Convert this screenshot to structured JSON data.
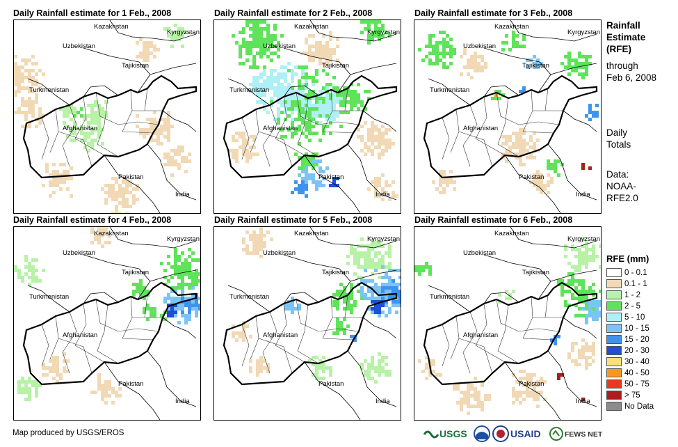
{
  "panels": [
    {
      "title": "Daily Rainfall estimate for 1 Feb., 2008",
      "country_labels": [
        "Kazakhstan",
        "Kyrgyzstan",
        "Uzbekistan",
        "Tajikistan",
        "Turkmenistan",
        "Afghanistan",
        "Pakistan",
        "India"
      ]
    },
    {
      "title": "Daily Rainfall estimate for 2 Feb., 2008",
      "country_labels": [
        "Kazakhstan",
        "Kyrgyzstan",
        "Uzbekistan",
        "Tajikistan",
        "Turkmenistan",
        "Afghanistan",
        "Pakistan",
        "India"
      ]
    },
    {
      "title": "Daily Rainfall estimate for 3 Feb., 2008",
      "country_labels": [
        "Kazakhstan",
        "Kyrgyzstan",
        "Uzbekistan",
        "Tajikistan",
        "Turkmenistan",
        "Afghanistan",
        "Pakistan",
        "India"
      ]
    },
    {
      "title": "Daily Rainfall estimate for 4 Feb., 2008",
      "country_labels": [
        "Kazakhstan",
        "Kyrgyzstan",
        "Uzbekistan",
        "Tajikistan",
        "Turkmenistan",
        "Afghanistan",
        "Pakistan",
        "India"
      ]
    },
    {
      "title": "Daily Rainfall estimate for 5 Feb., 2008",
      "country_labels": [
        "Kazakhstan",
        "Kyrgyzstan",
        "Uzbekistan",
        "Tajikistan",
        "Turkmenistan",
        "Afghanistan",
        "Pakistan",
        "India"
      ]
    },
    {
      "title": "Daily Rainfall estimate for 6 Feb., 2008",
      "country_labels": [
        "Kazakhstan",
        "Kyrgyzstan",
        "Uzbekistan",
        "Tajikistan",
        "Turkmenistan",
        "Afghanistan",
        "Pakistan",
        "India"
      ]
    }
  ],
  "side_info": {
    "title_lines": [
      "Rainfall",
      "Estimate",
      "(RFE)"
    ],
    "through_lines": [
      "through",
      "Feb 6, 2008"
    ],
    "totals_lines": [
      "Daily",
      "Totals"
    ],
    "source_lines": [
      "Data:",
      "NOAA-",
      "RFE2.0"
    ]
  },
  "legend": {
    "title": "RFE (mm)",
    "items": [
      {
        "label": "0 - 0.1",
        "color": "#ffffff"
      },
      {
        "label": "0.1 - 1",
        "color": "#f1d9b5"
      },
      {
        "label": "1 - 2",
        "color": "#b7f2a6"
      },
      {
        "label": "2 - 5",
        "color": "#5fe35a"
      },
      {
        "label": "5 - 10",
        "color": "#aef0f5"
      },
      {
        "label": "10 - 15",
        "color": "#7cc4f5"
      },
      {
        "label": "15 - 20",
        "color": "#3f93f0"
      },
      {
        "label": "20 - 30",
        "color": "#1f4fd6"
      },
      {
        "label": "30 - 40",
        "color": "#fbe07a"
      },
      {
        "label": "40 - 50",
        "color": "#f39a1c"
      },
      {
        "label": "50 - 75",
        "color": "#e8391c"
      },
      {
        "label": "> 75",
        "color": "#a81f1f"
      },
      {
        "label": "No Data",
        "color": "#8c8c8c"
      }
    ]
  },
  "credit": "Map produced by USGS/EROS",
  "logos": {
    "usgs": "USGS",
    "usaid": "USAID",
    "fews": "FEWS NET"
  },
  "rain_colors": {
    "light": "#f1d9b5",
    "green_light": "#b7f2a6",
    "green": "#5fe35a",
    "cyan": "#aef0f5",
    "blue_light": "#7cc4f5",
    "blue": "#3f93f0",
    "blue_dark": "#1f4fd6",
    "red_dark": "#a81f1f",
    "orange": "#f39a1c"
  }
}
